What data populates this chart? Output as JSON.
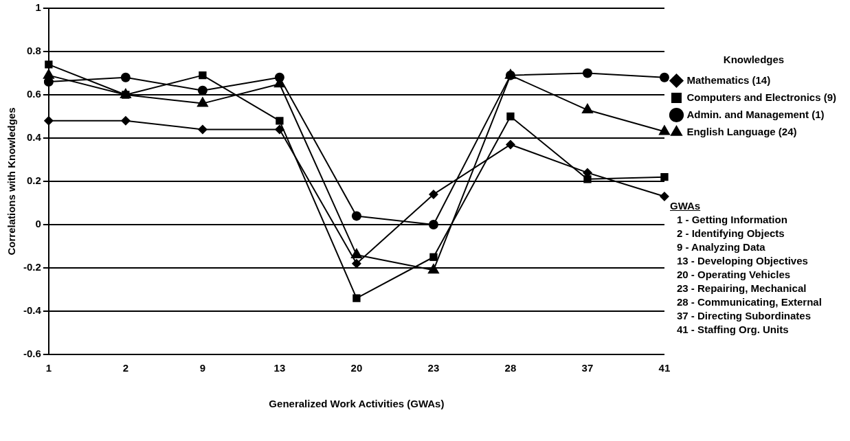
{
  "chart_data": {
    "type": "line",
    "xlabel": "Generalized Work Activities (GWAs)",
    "ylabel": "Correlations with Knowledges",
    "legend_title": "Knowledges",
    "categories": [
      "1",
      "2",
      "9",
      "13",
      "20",
      "23",
      "28",
      "37",
      "41"
    ],
    "series": [
      {
        "name": "Mathematics (14)",
        "color": "#000000",
        "marker": "diamond",
        "values": [
          0.48,
          0.48,
          0.44,
          0.44,
          -0.18,
          0.14,
          0.37,
          0.24,
          0.13
        ]
      },
      {
        "name": "Computers and Electronics (9)",
        "color": "#000000",
        "marker": "square",
        "values": [
          0.74,
          0.6,
          0.69,
          0.48,
          -0.34,
          -0.15,
          0.5,
          0.21,
          0.22
        ]
      },
      {
        "name": "Admin. and Management (1)",
        "color": "#000000",
        "marker": "circle",
        "values": [
          0.66,
          0.68,
          0.62,
          0.68,
          0.04,
          0.0,
          0.69,
          0.7,
          0.68
        ]
      },
      {
        "name": "English Language (24)",
        "color": "#000000",
        "marker": "triangle",
        "values": [
          0.69,
          0.6,
          0.56,
          0.65,
          -0.14,
          -0.21,
          0.69,
          0.53,
          0.43
        ]
      }
    ],
    "ylim": [
      -0.6,
      1
    ],
    "yticks": [
      -0.6,
      -0.4,
      -0.2,
      0,
      0.2,
      0.4,
      0.6,
      0.8,
      1
    ],
    "grid": "y",
    "legend": "right",
    "annotations": [
      "GWAs",
      "1 - Getting Information",
      "2 - Identifying Objects",
      "9 - Analyzing Data",
      "13 - Developing Objectives",
      "20 - Operating Vehicles",
      "23 - Repairing, Mechanical",
      "28 - Communicating, External",
      "37 - Directing Subordinates",
      "41 - Staffing Org. Units"
    ]
  }
}
